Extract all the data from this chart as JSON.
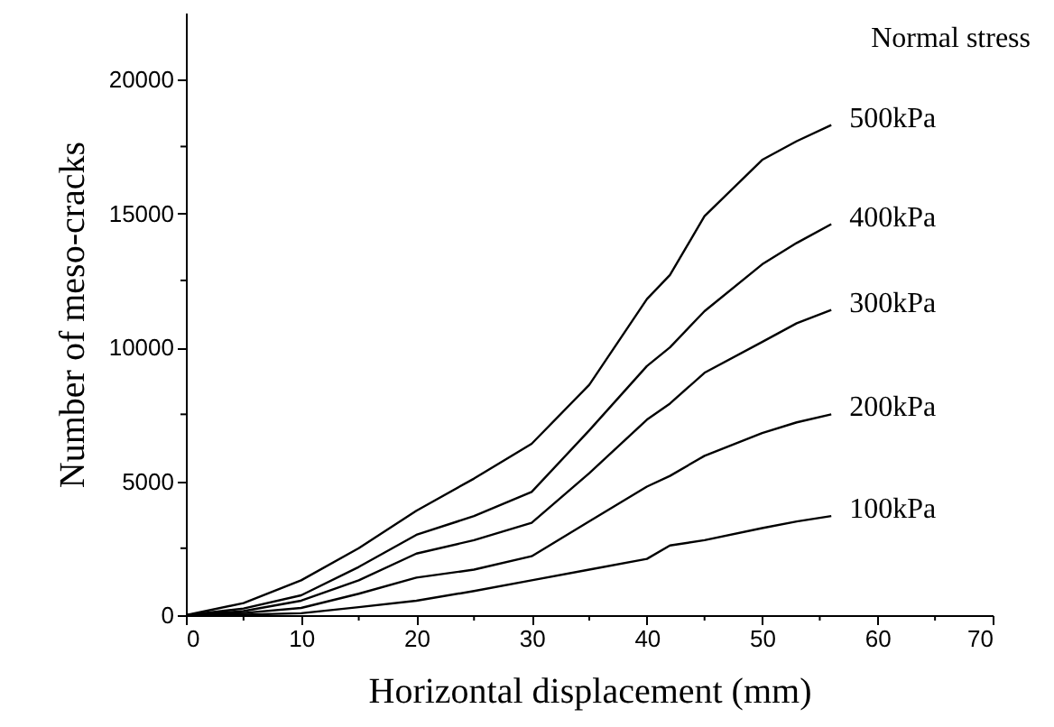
{
  "chart_data": {
    "type": "line",
    "xlabel": "Horizontal displacement (mm)",
    "ylabel": "Number of meso-cracks",
    "legend_title": "Normal stress",
    "grid": false,
    "marker": "none",
    "line_style": "solid",
    "xlim": [
      0,
      70
    ],
    "ylim": [
      0,
      22500
    ],
    "xticks": [
      0,
      {
        "value": 5,
        "label": null
      },
      10,
      {
        "value": 15,
        "label": null
      },
      20,
      {
        "value": 25,
        "label": null
      },
      30,
      {
        "value": 35,
        "label": null
      },
      40,
      {
        "value": 45,
        "label": null
      },
      50,
      {
        "value": 55,
        "label": null
      },
      60,
      {
        "value": 65,
        "label": null
      },
      70
    ],
    "yticks": [
      0,
      {
        "value": 2500,
        "label": null
      },
      5000,
      {
        "value": 7500,
        "label": null
      },
      10000,
      {
        "value": 12500,
        "label": null
      },
      15000,
      {
        "value": 17500,
        "label": null
      },
      20000
    ],
    "x": [
      0,
      5,
      10,
      15,
      20,
      25,
      30,
      35,
      40,
      42,
      45,
      50,
      53,
      56
    ],
    "series": [
      {
        "name": "500kPa",
        "color": "#000000",
        "values": [
          0,
          450,
          1300,
          2500,
          3900,
          5100,
          6400,
          8600,
          11800,
          12700,
          14900,
          17000,
          17700,
          18300
        ]
      },
      {
        "name": "400kPa",
        "color": "#000000",
        "values": [
          0,
          250,
          740,
          1800,
          3000,
          3700,
          4600,
          6900,
          9300,
          10000,
          11350,
          13100,
          13900,
          14600
        ]
      },
      {
        "name": "300kPa",
        "color": "#000000",
        "values": [
          0,
          150,
          540,
          1300,
          2300,
          2800,
          3450,
          5300,
          7300,
          7900,
          9050,
          10200,
          10900,
          11400
        ]
      },
      {
        "name": "200kPa",
        "color": "#000000",
        "values": [
          0,
          80,
          270,
          800,
          1400,
          1700,
          2200,
          3500,
          4800,
          5200,
          5950,
          6800,
          7200,
          7500
        ]
      },
      {
        "name": "100kPa",
        "color": "#000000",
        "values": [
          0,
          20,
          70,
          300,
          540,
          900,
          1300,
          1700,
          2100,
          2600,
          2800,
          3250,
          3500,
          3700
        ]
      }
    ]
  }
}
